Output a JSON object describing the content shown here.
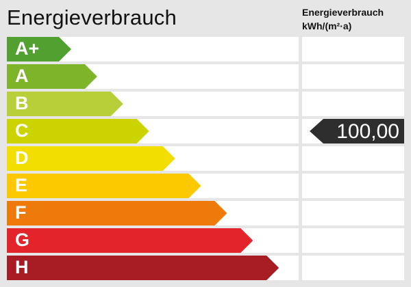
{
  "title": "Energieverbrauch",
  "unit_label": {
    "line1": "Energieverbrauch",
    "line2": "kWh/(m²·a)"
  },
  "chart_data": {
    "type": "bar",
    "categories": [
      "A+",
      "A",
      "B",
      "C",
      "D",
      "E",
      "F",
      "G",
      "H"
    ],
    "colors": [
      "#52a030",
      "#7db42a",
      "#b9cf3a",
      "#cbd400",
      "#f2de00",
      "#fcc800",
      "#ee7a0b",
      "#e3242a",
      "#a81c24"
    ],
    "value": "100,00",
    "value_class": "C",
    "marker_color": "#2e2e2e"
  }
}
